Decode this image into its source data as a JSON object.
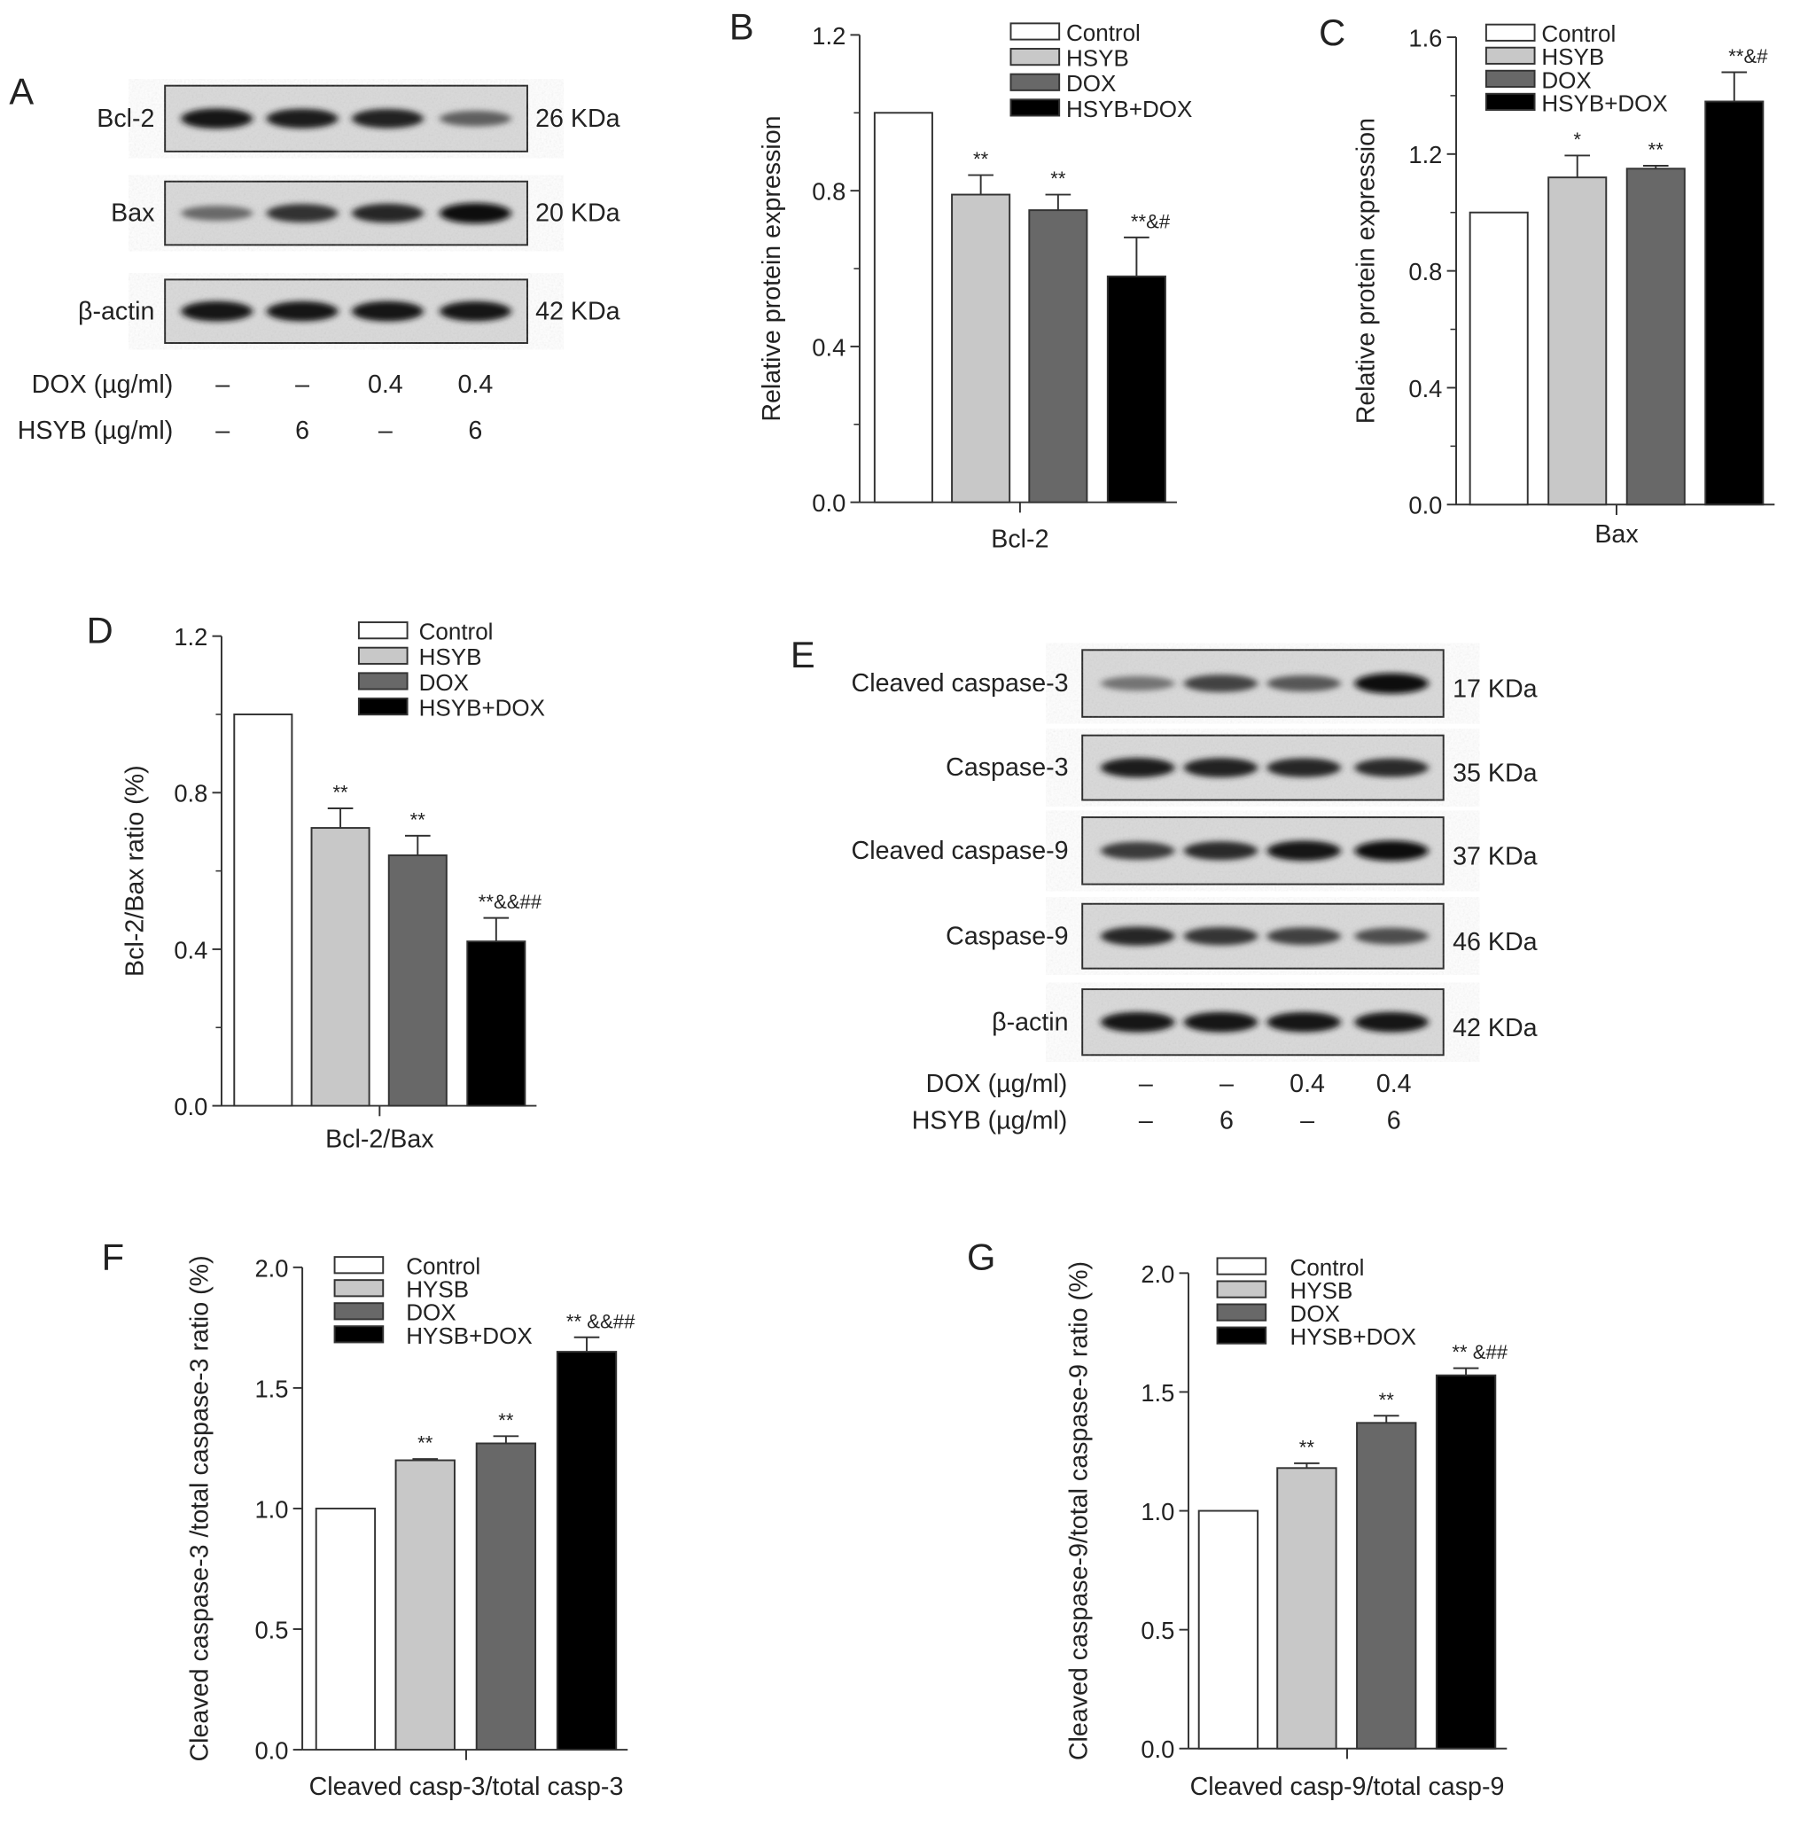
{
  "colors": {
    "Control": "#ffffff",
    "HSYB": "#c8c8c8",
    "DOX": "#686868",
    "HSYB+DOX": "#000000",
    "axis": "#333333"
  },
  "blots": [
    {
      "panel": "A",
      "rows": [
        {
          "label": "Bcl-2",
          "size": "26 KDa",
          "band_intensity": [
            0.95,
            0.9,
            0.88,
            0.55
          ]
        },
        {
          "label": "Bax",
          "size": "20 KDa",
          "band_intensity": [
            0.5,
            0.8,
            0.85,
            0.98
          ]
        },
        {
          "label": "β-actin",
          "size": "42 KDa",
          "band_intensity": [
            0.95,
            0.93,
            0.95,
            0.93
          ]
        }
      ],
      "treatments": [
        {
          "label": "DOX (µg/ml)",
          "values": [
            "–",
            "–",
            "0.4",
            "0.4"
          ]
        },
        {
          "label": "HSYB (µg/ml)",
          "values": [
            "–",
            "6",
            "–",
            "6"
          ]
        }
      ]
    },
    {
      "panel": "E",
      "rows": [
        {
          "label": "Cleaved caspase-3",
          "size": "17 KDa",
          "band_intensity": [
            0.45,
            0.7,
            0.6,
            0.98
          ]
        },
        {
          "label": "Caspase-3",
          "size": "35 KDa",
          "band_intensity": [
            0.9,
            0.88,
            0.85,
            0.82
          ]
        },
        {
          "label": "Cleaved caspase-9",
          "size": "37 KDa",
          "band_intensity": [
            0.75,
            0.82,
            0.95,
            0.97
          ]
        },
        {
          "label": "Caspase-9",
          "size": "46 KDa",
          "band_intensity": [
            0.85,
            0.78,
            0.72,
            0.65
          ]
        },
        {
          "label": "β-actin",
          "size": "42 KDa",
          "band_intensity": [
            0.95,
            0.95,
            0.93,
            0.95
          ]
        }
      ],
      "treatments": [
        {
          "label": "DOX (µg/ml)",
          "values": [
            "–",
            "–",
            "0.4",
            "0.4"
          ]
        },
        {
          "label": "HSYB (µg/ml)",
          "values": [
            "–",
            "6",
            "–",
            "6"
          ]
        }
      ]
    }
  ],
  "chart_data": [
    {
      "panel": "B",
      "type": "bar",
      "categories": [
        "Bcl-2"
      ],
      "xlabel": "Bcl-2",
      "ylabel": "Relative protein expression",
      "ylim": [
        0,
        1.2
      ],
      "yticks": [
        "0.0",
        "0.4",
        "0.8",
        "1.2"
      ],
      "legend_position": "top-right",
      "series": [
        {
          "name": "Control",
          "values": [
            1.0
          ],
          "error": [
            0
          ],
          "annotation": ""
        },
        {
          "name": "HSYB",
          "values": [
            0.79
          ],
          "error": [
            0.05
          ],
          "annotation": "**"
        },
        {
          "name": "DOX",
          "values": [
            0.75
          ],
          "error": [
            0.04
          ],
          "annotation": "**"
        },
        {
          "name": "HSYB+DOX",
          "values": [
            0.58
          ],
          "error": [
            0.1
          ],
          "annotation": "**&#"
        }
      ]
    },
    {
      "panel": "C",
      "type": "bar",
      "categories": [
        "Bax"
      ],
      "xlabel": "Bax",
      "ylabel": "Relative protein expression",
      "ylim": [
        0,
        1.6
      ],
      "yticks": [
        "0.0",
        "0.4",
        "0.8",
        "1.2",
        "1.6"
      ],
      "legend_position": "top-left",
      "series": [
        {
          "name": "Control",
          "values": [
            1.0
          ],
          "error": [
            0
          ],
          "annotation": ""
        },
        {
          "name": "HSYB",
          "values": [
            1.12
          ],
          "error": [
            0.075
          ],
          "annotation": "*"
        },
        {
          "name": "DOX",
          "values": [
            1.15
          ],
          "error": [
            0.01
          ],
          "annotation": "**"
        },
        {
          "name": "HSYB+DOX",
          "values": [
            1.38
          ],
          "error": [
            0.1
          ],
          "annotation": "**&#"
        }
      ]
    },
    {
      "panel": "D",
      "type": "bar",
      "categories": [
        "Bcl-2/Bax"
      ],
      "xlabel": "Bcl-2/Bax",
      "ylabel": "Bcl-2/Bax ratio (%)",
      "ylim": [
        0,
        1.2
      ],
      "yticks": [
        "0.0",
        "0.4",
        "0.8",
        "1.2"
      ],
      "legend_position": "top-right",
      "series": [
        {
          "name": "Control",
          "values": [
            1.0
          ],
          "error": [
            0
          ],
          "annotation": ""
        },
        {
          "name": "HSYB",
          "values": [
            0.71
          ],
          "error": [
            0.05
          ],
          "annotation": "**"
        },
        {
          "name": "DOX",
          "values": [
            0.64
          ],
          "error": [
            0.05
          ],
          "annotation": "**"
        },
        {
          "name": "HSYB+DOX",
          "values": [
            0.42
          ],
          "error": [
            0.06
          ],
          "annotation": "**&&##"
        }
      ]
    },
    {
      "panel": "F",
      "type": "bar",
      "categories": [
        "Cleaved casp-3/total casp-3"
      ],
      "xlabel": "Cleaved casp-3/total casp-3",
      "ylabel": "Cleaved caspase-3 /total caspase-3 ratio (%)",
      "ylim": [
        0,
        2.0
      ],
      "yticks": [
        "0.0",
        "0.5",
        "1.0",
        "1.5",
        "2.0"
      ],
      "legend_position": "top-left",
      "series": [
        {
          "name": "Control",
          "values": [
            1.0
          ],
          "error": [
            0
          ],
          "annotation": ""
        },
        {
          "name": "HYSB",
          "values": [
            1.2
          ],
          "error": [
            0.005
          ],
          "annotation": "**"
        },
        {
          "name": "DOX",
          "values": [
            1.27
          ],
          "error": [
            0.03
          ],
          "annotation": "**"
        },
        {
          "name": "HYSB+DOX",
          "values": [
            1.65
          ],
          "error": [
            0.06
          ],
          "annotation": "** &&##"
        }
      ]
    },
    {
      "panel": "G",
      "type": "bar",
      "categories": [
        "Cleaved casp-9/total casp-9"
      ],
      "xlabel": "Cleaved casp-9/total casp-9",
      "ylabel": "Cleaved caspase-9/total caspase-9 ratio (%)",
      "ylim": [
        0,
        2.0
      ],
      "yticks": [
        "0.0",
        "0.5",
        "1.0",
        "1.5",
        "2.0"
      ],
      "legend_position": "top-left",
      "series": [
        {
          "name": "Control",
          "values": [
            1.0
          ],
          "error": [
            0
          ],
          "annotation": ""
        },
        {
          "name": "HYSB",
          "values": [
            1.18
          ],
          "error": [
            0.02
          ],
          "annotation": "**"
        },
        {
          "name": "DOX",
          "values": [
            1.37
          ],
          "error": [
            0.03
          ],
          "annotation": "**"
        },
        {
          "name": "HYSB+DOX",
          "values": [
            1.57
          ],
          "error": [
            0.03
          ],
          "annotation": "** &##"
        }
      ]
    }
  ]
}
